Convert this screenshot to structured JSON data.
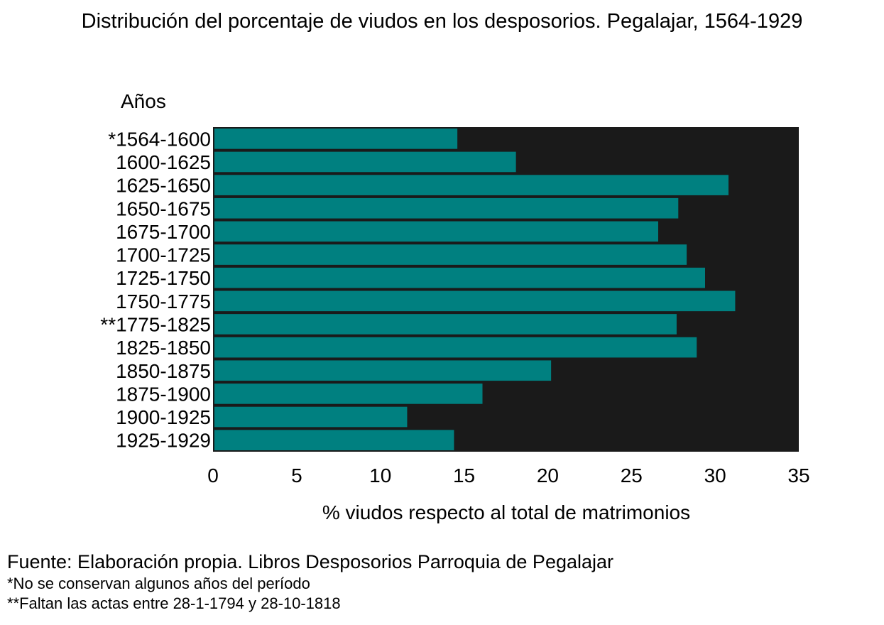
{
  "colors": {
    "plot_bg": "#1a1a1a",
    "bar": "#008080"
  },
  "chart_data": {
    "type": "bar",
    "orientation": "horizontal",
    "title": "Distribución del porcentaje de viudos en los desposorios. Pegalajar, 1564-1929",
    "ylabel": "Años",
    "xlabel": "% viudos respecto al total de matrimonios",
    "xlim": [
      0,
      35
    ],
    "xticks": [
      0,
      5,
      10,
      15,
      20,
      25,
      30,
      35
    ],
    "grid": false,
    "categories": [
      "*1564-1600",
      "1600-1625",
      "1625-1650",
      "1650-1675",
      "1675-1700",
      "1700-1725",
      "1725-1750",
      "1750-1775",
      "**1775-1825",
      "1825-1850",
      "1850-1875",
      "1875-1900",
      "1900-1925",
      "1925-1929"
    ],
    "values": [
      14.6,
      18.1,
      30.8,
      27.8,
      26.6,
      28.3,
      29.4,
      31.2,
      27.7,
      28.9,
      20.2,
      16.1,
      11.6,
      14.4
    ]
  },
  "footer": {
    "source": "Fuente: Elaboración propia. Libros Desposorios Parroquia de Pegalajar",
    "notes": [
      "*No se conservan algunos años del período",
      "**Faltan las actas entre 28-1-1794 y 28-10-1818"
    ]
  }
}
